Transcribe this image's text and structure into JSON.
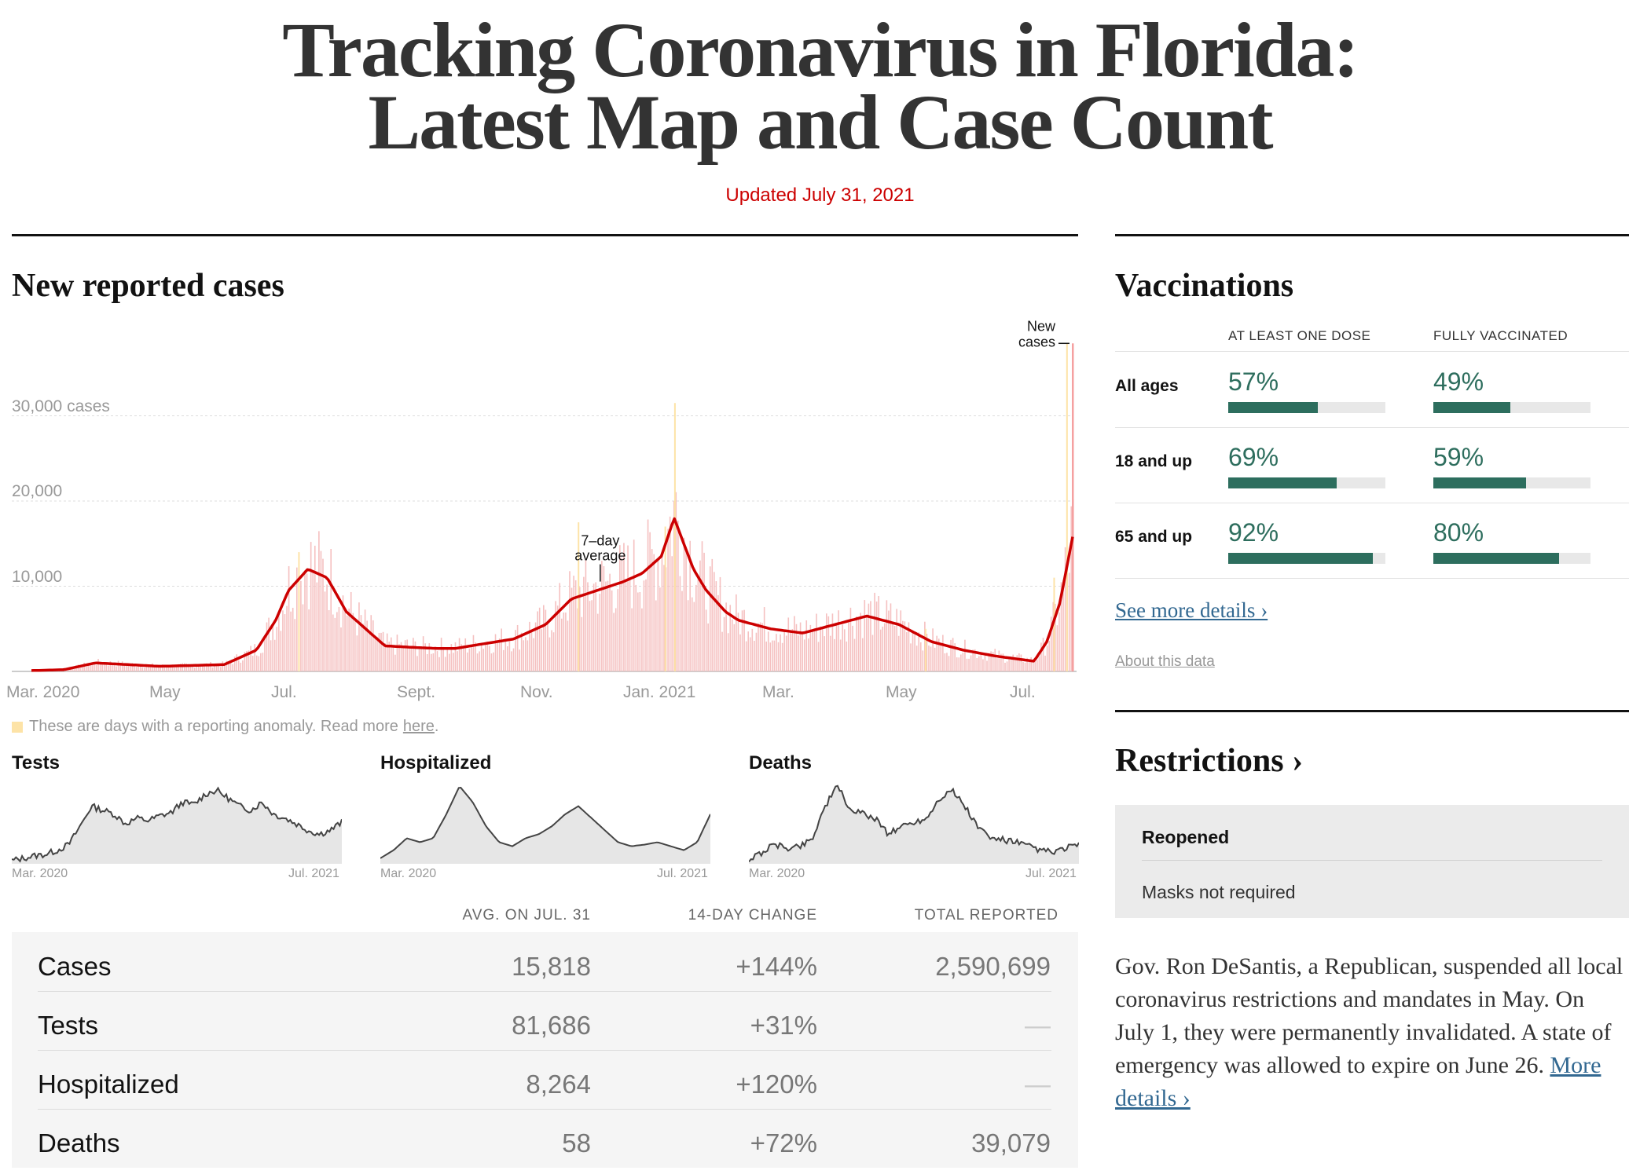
{
  "headline": {
    "line1": "Tracking Coronavirus in Florida:",
    "line2": "Latest Map and Case Count",
    "updated": "Updated July 31, 2021"
  },
  "cases_section": {
    "title": "New reported cases",
    "y_ticks": [
      "30,000 cases",
      "20,000",
      "10,000"
    ],
    "x_ticks": [
      "Mar. 2020",
      "May",
      "Jul.",
      "Sept.",
      "Nov.",
      "Jan. 2021",
      "Mar.",
      "May",
      "Jul."
    ],
    "annotation_avg": [
      "7–day",
      "average"
    ],
    "annotation_new": [
      "New",
      "cases"
    ],
    "anomaly_note": "These are days with a reporting anomaly. Read more",
    "anomaly_link": "here",
    "anomaly_end": "."
  },
  "colors": {
    "line": "#cc0000",
    "bars": "#f5c0c0",
    "anomaly": "#fde3a7",
    "vax": "#2d6e5e",
    "link": "#326891"
  },
  "chart_data": [
    {
      "type": "line",
      "title": "New reported cases",
      "ylabel": "cases",
      "ylim": [
        0,
        40000
      ],
      "x_range": [
        "Mar. 2020",
        "Jul. 2021"
      ],
      "x_ticks": [
        "Mar. 2020",
        "May",
        "Jul.",
        "Sept.",
        "Nov.",
        "Jan. 2021",
        "Mar.",
        "May",
        "Jul."
      ],
      "y_ticks": [
        10000,
        20000,
        30000
      ],
      "series": [
        {
          "name": "7-day average",
          "x_month_index": [
            0,
            0.5,
            1,
            1.5,
            2,
            2.5,
            3,
            3.5,
            3.8,
            4,
            4.3,
            4.6,
            4.9,
            5.2,
            5.5,
            6,
            6.3,
            6.6,
            7,
            7.5,
            8,
            8.4,
            8.8,
            9.2,
            9.5,
            9.8,
            10,
            10.2,
            10.3,
            10.5,
            10.8,
            11,
            11.5,
            12,
            12.5,
            13,
            13.5,
            14,
            14.5,
            15,
            15.3,
            15.6,
            15.8,
            16,
            16.2
          ],
          "values": [
            100,
            200,
            1000,
            800,
            600,
            700,
            800,
            2500,
            6000,
            9500,
            12000,
            11000,
            7000,
            5000,
            3000,
            2800,
            2700,
            2700,
            3200,
            3800,
            5500,
            8500,
            9500,
            10500,
            11500,
            13500,
            18000,
            14000,
            12000,
            9500,
            7000,
            6000,
            5000,
            4500,
            5500,
            6500,
            5500,
            3500,
            2500,
            1800,
            1500,
            1200,
            3500,
            8000,
            15800
          ]
        },
        {
          "name": "New cases (daily peak)",
          "x_month_index": [
            16.2
          ],
          "values": [
            38500
          ]
        }
      ]
    },
    {
      "type": "area",
      "title": "Tests",
      "x_range": [
        "Mar. 2020",
        "Jul. 2021"
      ],
      "values": [
        2,
        5,
        8,
        10,
        15,
        22,
        45,
        70,
        65,
        60,
        48,
        55,
        52,
        58,
        62,
        75,
        72,
        85,
        90,
        80,
        70,
        65,
        75,
        60,
        55,
        48,
        40,
        35,
        40,
        50
      ]
    },
    {
      "type": "area",
      "title": "Hospitalized",
      "x_range": [
        "Mar. 2020",
        "Jul. 2021"
      ],
      "values": [
        5,
        15,
        30,
        25,
        30,
        60,
        95,
        75,
        45,
        25,
        20,
        30,
        35,
        45,
        60,
        70,
        55,
        40,
        25,
        20,
        22,
        25,
        20,
        15,
        25,
        60
      ]
    },
    {
      "type": "area",
      "title": "Deaths",
      "x_range": [
        "Mar. 2020",
        "Jul. 2021"
      ],
      "values": [
        3,
        12,
        22,
        18,
        20,
        30,
        70,
        95,
        65,
        60,
        55,
        35,
        45,
        50,
        55,
        80,
        90,
        70,
        45,
        30,
        28,
        25,
        20,
        15,
        12,
        18,
        22
      ]
    }
  ],
  "mini_charts": [
    {
      "title": "Tests",
      "start": "Mar. 2020",
      "end": "Jul. 2021"
    },
    {
      "title": "Hospitalized",
      "start": "Mar. 2020",
      "end": "Jul. 2021"
    },
    {
      "title": "Deaths",
      "start": "Mar. 2020",
      "end": "Jul. 2021"
    }
  ],
  "stats_table": {
    "headers": [
      "AVG. ON JUL. 31",
      "14-DAY CHANGE",
      "TOTAL REPORTED"
    ],
    "rows": [
      {
        "label": "Cases",
        "avg": "15,818",
        "change": "+144%",
        "total": "2,590,699"
      },
      {
        "label": "Tests",
        "avg": "81,686",
        "change": "+31%",
        "total": "—"
      },
      {
        "label": "Hospitalized",
        "avg": "8,264",
        "change": "+120%",
        "total": "—"
      },
      {
        "label": "Deaths",
        "avg": "58",
        "change": "+72%",
        "total": "39,079"
      }
    ]
  },
  "vaccinations": {
    "title": "Vaccinations",
    "col_one_dose": "AT LEAST ONE DOSE",
    "col_full": "FULLY VACCINATED",
    "rows": [
      {
        "label": "All ages",
        "one_dose": "57%",
        "one_dose_value": 57,
        "full": "49%",
        "full_value": 49
      },
      {
        "label": "18 and up",
        "one_dose": "69%",
        "one_dose_value": 69,
        "full": "59%",
        "full_value": 59
      },
      {
        "label": "65 and up",
        "one_dose": "92%",
        "one_dose_value": 92,
        "full": "80%",
        "full_value": 80
      }
    ],
    "more_link": "See more details ›",
    "about_link": "About this data"
  },
  "restrictions": {
    "title": "Restrictions ›",
    "status": "Reopened",
    "masks": "Masks not required",
    "text": "Gov. Ron DeSantis, a Republican, suspended all local coronavirus restrictions and mandates in May. On July 1, they were permanently invalidated. A state of emergency was allowed to expire on June 26.",
    "more_link": "More details ›"
  }
}
